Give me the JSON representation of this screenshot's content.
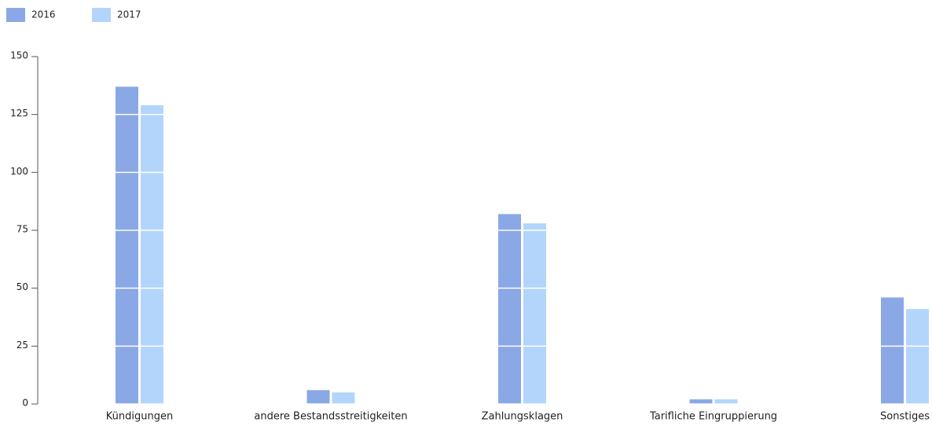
{
  "chart_data": {
    "type": "bar",
    "categories": [
      "Kündigungen",
      "andere Bestandsstreitigkeiten",
      "Zahlungsklagen",
      "Tarifliche Eingruppierung",
      "Sonstiges"
    ],
    "series": [
      {
        "name": "2016",
        "color": "#8aa8e5",
        "values": [
          137,
          6,
          82,
          2,
          46
        ]
      },
      {
        "name": "2017",
        "color": "#b3d5fc",
        "values": [
          129,
          5,
          78,
          2,
          41
        ]
      }
    ],
    "ylim": [
      0,
      150
    ],
    "yticks": [
      0,
      25,
      50,
      75,
      100,
      125,
      150
    ],
    "grid": true,
    "legend": "top-left"
  }
}
